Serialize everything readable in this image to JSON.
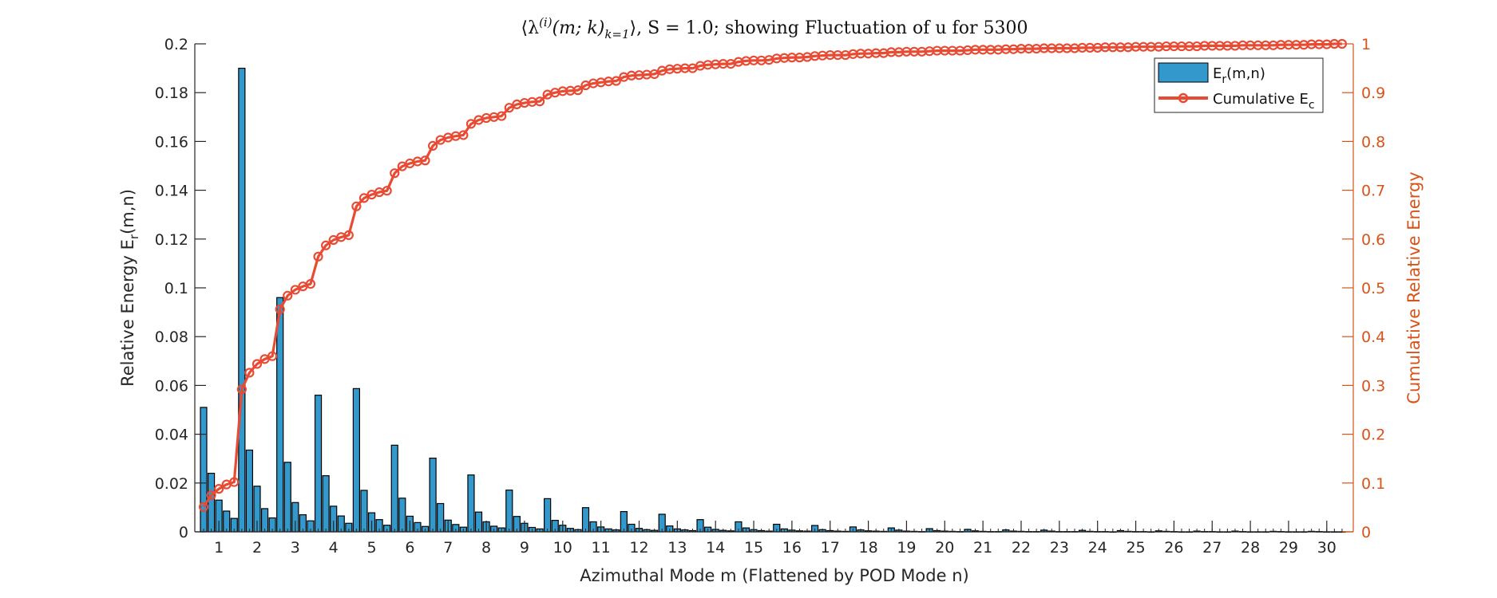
{
  "chart_data": {
    "type": "bar",
    "title": "⟨λ(i)(m;k)k=1⟩, S = 1.0; showing Fluctuation of u for 5300",
    "title_parts": {
      "pre": "⟨λ",
      "sup": "(i)",
      "mid": "(m; k)",
      "sub": "k=1",
      "post": "⟩, S = 1.0; showing Fluctuation of u for 5300"
    },
    "xlabel": "Azimuthal Mode m (Flattened by POD Mode n)",
    "ylabel": {
      "text": "Relative Energy E",
      "sub": "r",
      "post": "(m,n)"
    },
    "ylabel_right": "Cumulative Relative Energy",
    "ylim": [
      0,
      0.2
    ],
    "ylim_right": [
      0,
      1
    ],
    "yticks": [
      "0",
      "0.02",
      "0.04",
      "0.06",
      "0.08",
      "0.1",
      "0.12",
      "0.14",
      "0.16",
      "0.18",
      "0.2"
    ],
    "yticks_right": [
      "0",
      "0.1",
      "0.2",
      "0.3",
      "0.4",
      "0.5",
      "0.6",
      "0.7",
      "0.8",
      "0.9",
      "1"
    ],
    "categories": [
      "1",
      "2",
      "3",
      "4",
      "5",
      "6",
      "7",
      "8",
      "9",
      "10",
      "11",
      "12",
      "13",
      "14",
      "15",
      "16",
      "17",
      "18",
      "19",
      "20",
      "21",
      "22",
      "23",
      "24",
      "25",
      "26",
      "27",
      "28",
      "29",
      "30"
    ],
    "pod_modes_per_category": 5,
    "grid": false,
    "legend": {
      "placement": "top-right",
      "entries": [
        {
          "text": "E",
          "sub": "r",
          "post": "(m,n)"
        },
        {
          "text": "Cumulative E",
          "sub": "c",
          "post": ""
        }
      ]
    },
    "colors": {
      "bars": "#3399CC",
      "cumulative_line": "#E84A33",
      "right_axis": "#D95319"
    },
    "series": [
      {
        "name": "Er(m,n)",
        "type": "bar",
        "values": [
          [
            0.051,
            0.024,
            0.013,
            0.0085,
            0.0055
          ],
          [
            0.19,
            0.0335,
            0.0187,
            0.0095,
            0.0057
          ],
          [
            0.096,
            0.0285,
            0.012,
            0.007,
            0.0045
          ],
          [
            0.056,
            0.023,
            0.0105,
            0.0065,
            0.0035
          ],
          [
            0.0587,
            0.017,
            0.0078,
            0.005,
            0.0027
          ],
          [
            0.0355,
            0.0138,
            0.0064,
            0.0038,
            0.0022
          ],
          [
            0.0302,
            0.0116,
            0.0048,
            0.003,
            0.0019
          ],
          [
            0.0233,
            0.0081,
            0.0041,
            0.0023,
            0.0016
          ],
          [
            0.0171,
            0.0063,
            0.0035,
            0.0018,
            0.0012
          ],
          [
            0.0136,
            0.0047,
            0.0027,
            0.0014,
            0.0009
          ],
          [
            0.0099,
            0.0041,
            0.002,
            0.0012,
            0.0008
          ],
          [
            0.0083,
            0.0031,
            0.0014,
            0.0009,
            0.0006
          ],
          [
            0.0072,
            0.0024,
            0.0012,
            0.0008,
            0.0005
          ],
          [
            0.005,
            0.0019,
            0.001,
            0.0006,
            0.0004
          ],
          [
            0.0041,
            0.0016,
            0.0009,
            0.0005,
            0.0003
          ],
          [
            0.0031,
            0.0012,
            0.0007,
            0.0004,
            0.0003
          ],
          [
            0.0026,
            0.0009,
            0.0005,
            0.0003,
            0.0002
          ],
          [
            0.002,
            0.0008,
            0.0004,
            0.0003,
            0.0002
          ],
          [
            0.0016,
            0.0007,
            0.0003,
            0.0002,
            0.0001
          ],
          [
            0.0013,
            0.0005,
            0.0003,
            0.0002,
            0.0001
          ],
          [
            0.001,
            0.0004,
            0.0002,
            0.0001,
            0.0001
          ],
          [
            0.0008,
            0.0003,
            0.0002,
            0.0001,
            0.0001
          ],
          [
            0.0007,
            0.0003,
            0.0001,
            0.0001,
            0.0001
          ],
          [
            0.0006,
            0.0002,
            0.0001,
            0.0001,
            0
          ],
          [
            0.0005,
            0.0002,
            0.0001,
            0.0001,
            0
          ],
          [
            0.0004,
            0.0002,
            0.0001,
            0,
            0
          ],
          [
            0.0003,
            0.0001,
            0.0001,
            0,
            0
          ],
          [
            0.0003,
            0.0001,
            0,
            0,
            0
          ],
          [
            0.0002,
            0.0001,
            0,
            0,
            0
          ],
          [
            0.0002,
            0.0001,
            0,
            0,
            0
          ]
        ]
      },
      {
        "name": "Cumulative Ec",
        "type": "line",
        "axis": "right",
        "marker": "circle",
        "values": [
          [
            0.051,
            0.075,
            0.088,
            0.097,
            0.102
          ],
          [
            0.292,
            0.326,
            0.344,
            0.354,
            0.36
          ],
          [
            0.456,
            0.484,
            0.496,
            0.503,
            0.508
          ],
          [
            0.564,
            0.587,
            0.598,
            0.604,
            0.608
          ],
          [
            0.667,
            0.684,
            0.691,
            0.696,
            0.699
          ],
          [
            0.735,
            0.749,
            0.755,
            0.759,
            0.761
          ],
          [
            0.791,
            0.803,
            0.808,
            0.811,
            0.813
          ],
          [
            0.836,
            0.844,
            0.848,
            0.85,
            0.852
          ],
          [
            0.869,
            0.876,
            0.879,
            0.881,
            0.882
          ],
          [
            0.896,
            0.9,
            0.903,
            0.904,
            0.905
          ],
          [
            0.915,
            0.919,
            0.921,
            0.923,
            0.924
          ],
          [
            0.932,
            0.935,
            0.936,
            0.937,
            0.938
          ],
          [
            0.945,
            0.948,
            0.949,
            0.95,
            0.95
          ],
          [
            0.955,
            0.957,
            0.958,
            0.959,
            0.959
          ],
          [
            0.963,
            0.965,
            0.966,
            0.966,
            0.967
          ],
          [
            0.97,
            0.971,
            0.972,
            0.972,
            0.973
          ],
          [
            0.975,
            0.976,
            0.977,
            0.977,
            0.977
          ],
          [
            0.979,
            0.98,
            0.98,
            0.981,
            0.981
          ],
          [
            0.983,
            0.983,
            0.984,
            0.984,
            0.984
          ],
          [
            0.985,
            0.986,
            0.986,
            0.986,
            0.986
          ],
          [
            0.987,
            0.988,
            0.988,
            0.988,
            0.988
          ],
          [
            0.989,
            0.989,
            0.99,
            0.99,
            0.99
          ],
          [
            0.991,
            0.991,
            0.991,
            0.991,
            0.991
          ],
          [
            0.992,
            0.992,
            0.992,
            0.993,
            0.993
          ],
          [
            0.993,
            0.993,
            0.994,
            0.994,
            0.994
          ],
          [
            0.994,
            0.995,
            0.995,
            0.995,
            0.995
          ],
          [
            0.995,
            0.996,
            0.996,
            0.996,
            0.996
          ],
          [
            0.996,
            0.997,
            0.997,
            0.997,
            0.997
          ],
          [
            0.997,
            0.998,
            0.998,
            0.998,
            0.998
          ],
          [
            0.999,
            0.999,
            0.999,
            1.0,
            1.0
          ]
        ]
      }
    ]
  }
}
